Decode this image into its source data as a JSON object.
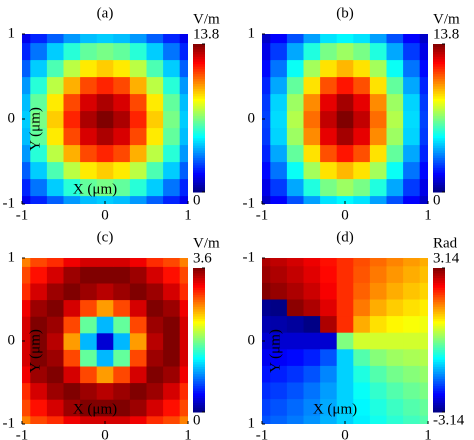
{
  "chart_data": [
    {
      "type": "heatmap",
      "title": "(a)",
      "xlabel": "X (μm)",
      "ylabel": "Y (μm)",
      "colormap": "jet",
      "colorbar_label": "V/m",
      "xlim": [
        -1,
        1
      ],
      "ylim": [
        -1,
        1
      ],
      "xticks": [
        -1,
        0,
        1
      ],
      "yticks": [
        -1,
        0,
        1
      ],
      "clim": [
        0,
        13.8
      ],
      "cticks": [
        0,
        13.8
      ],
      "x": [
        -1,
        -0.8,
        -0.6,
        -0.4,
        -0.2,
        0,
        0.2,
        0.4,
        0.6,
        0.8,
        1
      ],
      "y": [
        -1,
        -0.8,
        -0.6,
        -0.4,
        -0.2,
        0,
        0.2,
        0.4,
        0.6,
        0.8,
        1
      ],
      "z": [
        [
          1.5,
          2.2,
          3,
          3.8,
          4.3,
          4.5,
          4.3,
          3.8,
          3,
          2.2,
          1.5
        ],
        [
          2.2,
          3.3,
          4.5,
          5.7,
          6.5,
          6.8,
          6.5,
          5.7,
          4.5,
          3.3,
          2.2
        ],
        [
          3,
          4.5,
          6.2,
          7.7,
          8.9,
          9.3,
          8.9,
          7.7,
          6.2,
          4.5,
          3
        ],
        [
          3.8,
          5.7,
          7.7,
          9.7,
          11.1,
          11.6,
          11.1,
          9.7,
          7.7,
          5.7,
          3.8
        ],
        [
          4.3,
          6.5,
          8.9,
          11.1,
          12.6,
          13.2,
          12.6,
          11.1,
          8.9,
          6.5,
          4.3
        ],
        [
          4.5,
          6.8,
          9.3,
          11.6,
          13.2,
          13.8,
          13.2,
          11.6,
          9.3,
          6.8,
          4.5
        ],
        [
          4.3,
          6.5,
          8.9,
          11.1,
          12.6,
          13.2,
          12.6,
          11.1,
          8.9,
          6.5,
          4.3
        ],
        [
          3.8,
          5.7,
          7.7,
          9.7,
          11.1,
          11.6,
          11.1,
          9.7,
          7.7,
          5.7,
          3.8
        ],
        [
          3,
          4.5,
          6.2,
          7.7,
          8.9,
          9.3,
          8.9,
          7.7,
          6.2,
          4.5,
          3
        ],
        [
          2.2,
          3.3,
          4.5,
          5.7,
          6.5,
          6.8,
          6.5,
          5.7,
          4.5,
          3.3,
          2.2
        ],
        [
          1.5,
          2.2,
          3,
          3.8,
          4.3,
          4.5,
          4.3,
          3.8,
          3,
          2.2,
          1.5
        ]
      ]
    },
    {
      "type": "heatmap",
      "title": "(b)",
      "colormap": "jet",
      "colorbar_label": "V/m",
      "xlim": [
        -1,
        1
      ],
      "ylim": [
        -1,
        1
      ],
      "xticks": [
        -1,
        0,
        1
      ],
      "yticks": [
        -1,
        0,
        1
      ],
      "clim": [
        0,
        13.8
      ],
      "cticks": [
        0,
        13.8
      ],
      "x": [
        -1,
        -0.8,
        -0.6,
        -0.4,
        -0.2,
        0,
        0.2,
        0.4,
        0.6,
        0.8,
        1
      ],
      "y": [
        -1,
        -0.8,
        -0.6,
        -0.4,
        -0.2,
        0,
        0.2,
        0.4,
        0.6,
        0.8,
        1
      ],
      "z": [
        [
          1,
          1.7,
          2.8,
          3.9,
          4.8,
          5.1,
          4.8,
          3.9,
          2.8,
          1.7,
          1
        ],
        [
          1.4,
          2.5,
          4,
          5.6,
          6.8,
          7.3,
          6.8,
          5.6,
          4,
          2.5,
          1.4
        ],
        [
          1.8,
          3.3,
          5.3,
          7.4,
          9,
          9.6,
          9,
          7.4,
          5.3,
          3.3,
          1.8
        ],
        [
          2.2,
          4,
          6.5,
          9,
          11,
          11.8,
          11,
          9,
          6.5,
          4,
          2.2
        ],
        [
          2.5,
          4.6,
          7.3,
          10.2,
          12.4,
          13.3,
          12.4,
          10.2,
          7.3,
          4.6,
          2.5
        ],
        [
          2.6,
          4.7,
          7.6,
          10.6,
          12.9,
          13.8,
          12.9,
          10.6,
          7.6,
          4.7,
          2.6
        ],
        [
          2.5,
          4.6,
          7.3,
          10.2,
          12.4,
          13.3,
          12.4,
          10.2,
          7.3,
          4.6,
          2.5
        ],
        [
          2.2,
          4,
          6.5,
          9,
          11,
          11.8,
          11,
          9,
          6.5,
          4,
          2.2
        ],
        [
          1.8,
          3.3,
          5.3,
          7.4,
          9,
          9.6,
          9,
          7.4,
          5.3,
          3.3,
          1.8
        ],
        [
          1.4,
          2.5,
          4,
          5.6,
          6.8,
          7.3,
          6.8,
          5.6,
          4,
          2.5,
          1.4
        ],
        [
          1,
          1.7,
          2.8,
          3.9,
          4.8,
          5.1,
          4.8,
          3.9,
          2.8,
          1.7,
          1
        ]
      ]
    },
    {
      "type": "heatmap",
      "title": "(c)",
      "xlabel": "X (μm)",
      "ylabel": "Y (μm)",
      "colormap": "jet",
      "colorbar_label": "V/m",
      "xlim": [
        -1,
        1
      ],
      "ylim": [
        -1,
        1
      ],
      "xticks": [
        -1,
        0,
        1
      ],
      "yticks": [
        -1,
        0,
        1
      ],
      "clim": [
        0,
        3.6
      ],
      "cticks": [
        0,
        3.6
      ],
      "x": [
        -1,
        -0.8,
        -0.6,
        -0.4,
        -0.2,
        0,
        0.2,
        0.4,
        0.6,
        0.8,
        1
      ],
      "y": [
        -1,
        -0.8,
        -0.6,
        -0.4,
        -0.2,
        0,
        0.2,
        0.4,
        0.6,
        0.8,
        1
      ],
      "z": [
        [
          2.7,
          2.9,
          3,
          3.2,
          3.3,
          3.3,
          3.3,
          3.2,
          3,
          2.9,
          2.7
        ],
        [
          2.9,
          3.1,
          3.3,
          3.5,
          3.6,
          3.6,
          3.6,
          3.5,
          3.3,
          3.1,
          2.9
        ],
        [
          3,
          3.3,
          3.5,
          3.6,
          3.5,
          3.4,
          3.5,
          3.6,
          3.5,
          3.3,
          3
        ],
        [
          3.2,
          3.5,
          3.6,
          3.3,
          2.9,
          2.6,
          2.9,
          3.3,
          3.6,
          3.5,
          3.2
        ],
        [
          3.3,
          3.6,
          3.5,
          2.9,
          1.7,
          1.1,
          1.7,
          2.9,
          3.5,
          3.6,
          3.3
        ],
        [
          3.3,
          3.6,
          3.4,
          2.6,
          1.1,
          0.3,
          1.1,
          2.6,
          3.4,
          3.6,
          3.3
        ],
        [
          3.3,
          3.6,
          3.5,
          2.9,
          1.7,
          1.1,
          1.7,
          2.9,
          3.5,
          3.6,
          3.3
        ],
        [
          3.2,
          3.5,
          3.6,
          3.3,
          2.9,
          2.6,
          2.9,
          3.3,
          3.6,
          3.5,
          3.2
        ],
        [
          3,
          3.3,
          3.5,
          3.6,
          3.5,
          3.4,
          3.5,
          3.6,
          3.5,
          3.3,
          3
        ],
        [
          2.9,
          3.1,
          3.3,
          3.5,
          3.6,
          3.6,
          3.6,
          3.5,
          3.3,
          3.1,
          2.9
        ],
        [
          2.7,
          2.9,
          3,
          3.2,
          3.3,
          3.3,
          3.3,
          3.2,
          3,
          2.9,
          2.7
        ]
      ]
    },
    {
      "type": "heatmap",
      "title": "(d)",
      "xlabel": "X (μm)",
      "ylabel": "Y (μm)",
      "colormap": "jet",
      "colorbar_label": "Rad",
      "y_inverted": true,
      "xlim": [
        -1,
        1
      ],
      "ylim": [
        -1,
        1
      ],
      "xticks": [
        -1,
        0,
        1
      ],
      "yticks": [
        -1,
        0,
        1
      ],
      "clim": [
        -3.14,
        3.14
      ],
      "cticks": [
        -3.14,
        3.14
      ],
      "x": [
        -1,
        -0.8,
        -0.6,
        -0.4,
        -0.2,
        0,
        0.2,
        0.4,
        0.6,
        0.8,
        1
      ],
      "y": [
        -1,
        -0.8,
        -0.6,
        -0.4,
        -0.2,
        0,
        0.2,
        0.4,
        0.6,
        0.8,
        1
      ],
      "z": [
        [
          2.86,
          2.75,
          2.62,
          2.46,
          2.27,
          2.08,
          1.88,
          1.7,
          1.54,
          1.4,
          1.29
        ],
        [
          2.97,
          2.86,
          2.72,
          2.54,
          2.32,
          2.08,
          1.83,
          1.61,
          1.43,
          1.29,
          1.18
        ],
        [
          3.11,
          3,
          2.86,
          2.67,
          2.4,
          2.08,
          1.76,
          1.49,
          1.29,
          1.15,
          1.05
        ],
        [
          -3.02,
          -3.1,
          3.06,
          2.86,
          2.54,
          2.08,
          1.61,
          1.29,
          1.09,
          0.97,
          0.89
        ],
        [
          -2.83,
          -2.88,
          -2.96,
          -3.1,
          2.86,
          2.08,
          1.29,
          0.97,
          0.83,
          0.75,
          0.7
        ],
        [
          -2.64,
          -2.64,
          -2.64,
          -2.64,
          -2.64,
          0,
          0.51,
          0.51,
          0.51,
          0.51,
          0.51
        ],
        [
          -2.44,
          -2.39,
          -2.31,
          -2.17,
          -1.85,
          -1.06,
          -0.28,
          0.04,
          0.19,
          0.26,
          0.31
        ],
        [
          -2.25,
          -2.17,
          -2.05,
          -1.85,
          -1.53,
          -1.06,
          -0.6,
          -0.28,
          -0.08,
          0.04,
          0.13
        ],
        [
          -2.09,
          -1.99,
          -1.85,
          -1.65,
          -1.39,
          -1.06,
          -0.74,
          -0.48,
          -0.28,
          -0.14,
          -0.03
        ],
        [
          -1.96,
          -1.85,
          -1.71,
          -1.53,
          -1.31,
          -1.06,
          -0.82,
          -0.6,
          -0.42,
          -0.28,
          -0.17
        ],
        [
          -1.85,
          -1.74,
          -1.61,
          -1.45,
          -1.26,
          -1.06,
          -0.87,
          -0.68,
          -0.52,
          -0.39,
          -0.28
        ]
      ]
    }
  ]
}
